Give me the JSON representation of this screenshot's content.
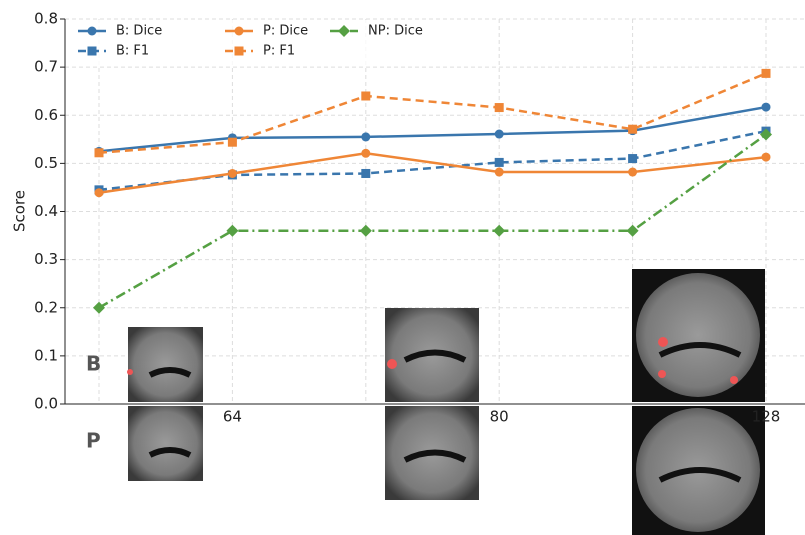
{
  "chart_data": {
    "type": "line",
    "categories": [
      null,
      "64",
      null,
      "80",
      null,
      "128"
    ],
    "y_label": "Score",
    "ylim": [
      0,
      0.8
    ],
    "yticks": [
      {
        "value": 0,
        "label": "0.0"
      },
      0.1,
      0.2,
      0.3,
      0.4,
      0.5,
      0.6,
      0.7,
      0.8
    ],
    "grid": true,
    "legend": "upper left",
    "row_labels": [
      "B",
      "P"
    ],
    "series": [
      {
        "name": "B: Dice",
        "color": "#3a76ad",
        "dash": "solid",
        "marker": "circle",
        "values": [
          0.525,
          0.553,
          0.555,
          0.561,
          0.568,
          0.617
        ]
      },
      {
        "name": "B: F1",
        "color": "#3a76ad",
        "dash": "dashed",
        "marker": "square",
        "values": [
          0.445,
          0.476,
          0.479,
          0.502,
          0.51,
          0.567
        ]
      },
      {
        "name": "P: Dice",
        "color": "#ef8636",
        "dash": "solid",
        "marker": "circle",
        "values": [
          0.439,
          0.479,
          0.521,
          0.482,
          0.482,
          0.513
        ]
      },
      {
        "name": "P: F1",
        "color": "#ef8636",
        "dash": "dashed",
        "marker": "square",
        "values": [
          0.522,
          0.544,
          0.64,
          0.616,
          0.571,
          0.687
        ]
      },
      {
        "name": "NP: Dice",
        "color": "#55a043",
        "dash": "dashdot",
        "marker": "diamond",
        "values": [
          0.2,
          0.36,
          0.36,
          0.36,
          0.36,
          0.56
        ]
      }
    ]
  }
}
